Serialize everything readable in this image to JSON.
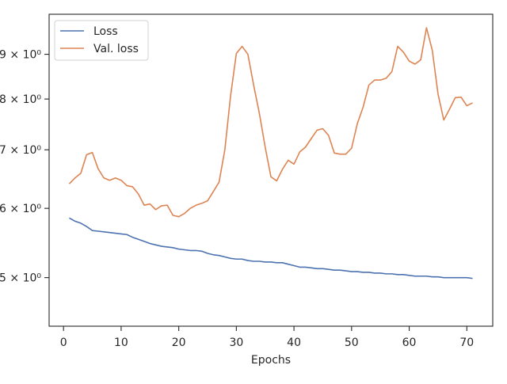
{
  "chart_data": {
    "type": "line",
    "xlabel": "Epochs",
    "ylabel": "",
    "title": "",
    "yscale": "log",
    "xlim": [
      -2.5,
      74.5
    ],
    "ylim": [
      4.4,
      10.0
    ],
    "x_ticks": [
      0,
      10,
      20,
      30,
      40,
      50,
      60,
      70
    ],
    "y_ticks": [
      {
        "value": 5,
        "label": "5 × 10⁰"
      },
      {
        "value": 6,
        "label": "6 × 10⁰"
      },
      {
        "value": 7,
        "label": "7 × 10⁰"
      },
      {
        "value": 8,
        "label": "8 × 10⁰"
      },
      {
        "value": 9,
        "label": "9 × 10⁰"
      }
    ],
    "legend": {
      "placement": "top-left"
    },
    "series": [
      {
        "name": "Loss",
        "color": "#4c72b0",
        "x": [
          1,
          2,
          3,
          4,
          5,
          6,
          7,
          8,
          9,
          10,
          11,
          12,
          13,
          14,
          15,
          16,
          17,
          18,
          19,
          20,
          21,
          22,
          23,
          24,
          25,
          26,
          27,
          28,
          29,
          30,
          31,
          32,
          33,
          34,
          35,
          36,
          37,
          38,
          39,
          40,
          41,
          42,
          43,
          44,
          45,
          46,
          47,
          48,
          49,
          50,
          51,
          52,
          53,
          54,
          55,
          56,
          57,
          58,
          59,
          60,
          61,
          62,
          63,
          64,
          65,
          66,
          67,
          68,
          69,
          70,
          71
        ],
        "values": [
          5.85,
          5.8,
          5.77,
          5.72,
          5.66,
          5.65,
          5.64,
          5.63,
          5.62,
          5.61,
          5.6,
          5.56,
          5.53,
          5.5,
          5.47,
          5.45,
          5.43,
          5.42,
          5.41,
          5.39,
          5.38,
          5.37,
          5.37,
          5.36,
          5.33,
          5.31,
          5.3,
          5.28,
          5.26,
          5.25,
          5.25,
          5.23,
          5.22,
          5.22,
          5.21,
          5.21,
          5.2,
          5.2,
          5.18,
          5.16,
          5.14,
          5.14,
          5.13,
          5.12,
          5.12,
          5.11,
          5.1,
          5.1,
          5.09,
          5.08,
          5.08,
          5.07,
          5.07,
          5.06,
          5.06,
          5.05,
          5.05,
          5.04,
          5.04,
          5.03,
          5.02,
          5.02,
          5.02,
          5.01,
          5.01,
          5.0,
          5.0,
          5.0,
          5.0,
          5.0,
          4.99
        ]
      },
      {
        "name": "Val. loss",
        "color": "#dd8452",
        "x": [
          1,
          2,
          3,
          4,
          5,
          6,
          7,
          8,
          9,
          10,
          11,
          12,
          13,
          14,
          15,
          16,
          17,
          18,
          19,
          20,
          21,
          22,
          23,
          24,
          25,
          26,
          27,
          28,
          29,
          30,
          31,
          32,
          33,
          34,
          35,
          36,
          37,
          38,
          39,
          40,
          41,
          42,
          43,
          44,
          45,
          46,
          47,
          48,
          49,
          50,
          51,
          52,
          53,
          54,
          55,
          56,
          57,
          58,
          59,
          60,
          61,
          62,
          63,
          64,
          65,
          66,
          67,
          68,
          69,
          70,
          71
        ],
        "values": [
          6.4,
          6.5,
          6.58,
          6.91,
          6.95,
          6.66,
          6.5,
          6.46,
          6.5,
          6.46,
          6.37,
          6.35,
          6.23,
          6.05,
          6.07,
          5.98,
          6.04,
          6.05,
          5.89,
          5.87,
          5.92,
          6.0,
          6.05,
          6.08,
          6.12,
          6.27,
          6.43,
          7.0,
          8.07,
          9.02,
          9.19,
          9.0,
          8.3,
          7.7,
          7.05,
          6.52,
          6.45,
          6.65,
          6.81,
          6.74,
          6.96,
          7.05,
          7.21,
          7.37,
          7.4,
          7.27,
          6.94,
          6.92,
          6.92,
          7.03,
          7.5,
          7.83,
          8.3,
          8.41,
          8.41,
          8.45,
          8.6,
          9.19,
          9.05,
          8.84,
          8.77,
          8.87,
          9.65,
          9.1,
          8.11,
          7.57,
          7.79,
          8.03,
          8.04,
          7.86,
          7.92
        ]
      }
    ]
  }
}
